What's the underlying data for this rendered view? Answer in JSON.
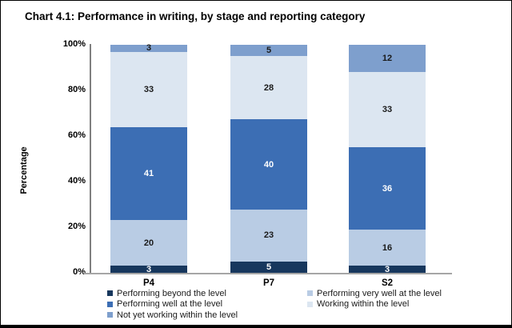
{
  "title": "Chart 4.1: Performance in writing, by stage and reporting category",
  "y_axis": {
    "label": "Percentage",
    "ticks": [
      "100%",
      "80%",
      "60%",
      "40%",
      "20%",
      "0%"
    ]
  },
  "x_axis": {
    "categories": [
      "P4",
      "P7",
      "S2"
    ]
  },
  "legend": {
    "columns": [
      [
        {
          "label": "Performing beyond the level",
          "color": "#17375D"
        },
        {
          "label": "Performing well at the level",
          "color": "#3C6EB4"
        },
        {
          "label": "Not yet working within the level",
          "color": "#7E9FCD"
        }
      ],
      [
        {
          "label": "Performing very well at the level",
          "color": "#B9CCE4"
        },
        {
          "label": "Working within the level",
          "color": "#DCE6F1"
        }
      ]
    ]
  },
  "colors": {
    "beyond": "#17375D",
    "very_well": "#B9CCE4",
    "well": "#3C6EB4",
    "working": "#DCE6F1",
    "not_yet": "#7E9FCD",
    "y_axis_line": "#7F7F7F",
    "x_axis_line": "#A6A6A6"
  },
  "chart_data": {
    "type": "bar",
    "stacked": true,
    "title": "Chart 4.1: Performance in writing, by stage and reporting category",
    "categories": [
      "P4",
      "P7",
      "S2"
    ],
    "series": [
      {
        "name": "Performing beyond the level",
        "color": "#17375D",
        "label_color": "#FFFFFF",
        "values": [
          3,
          5,
          3
        ]
      },
      {
        "name": "Performing very well at the level",
        "color": "#B9CCE4",
        "label_color": "#1A1A1A",
        "values": [
          20,
          23,
          16
        ]
      },
      {
        "name": "Performing well at the level",
        "color": "#3C6EB4",
        "label_color": "#FFFFFF",
        "values": [
          41,
          40,
          36
        ]
      },
      {
        "name": "Working within the level",
        "color": "#DCE6F1",
        "label_color": "#1A1A1A",
        "values": [
          33,
          28,
          33
        ]
      },
      {
        "name": "Not yet working within the level",
        "color": "#7E9FCD",
        "label_color": "#1A1A1A",
        "values": [
          3,
          5,
          12
        ]
      }
    ],
    "xlabel": "",
    "ylabel": "Percentage",
    "ylim": [
      0,
      100
    ],
    "grid": false,
    "legend_position": "bottom"
  }
}
